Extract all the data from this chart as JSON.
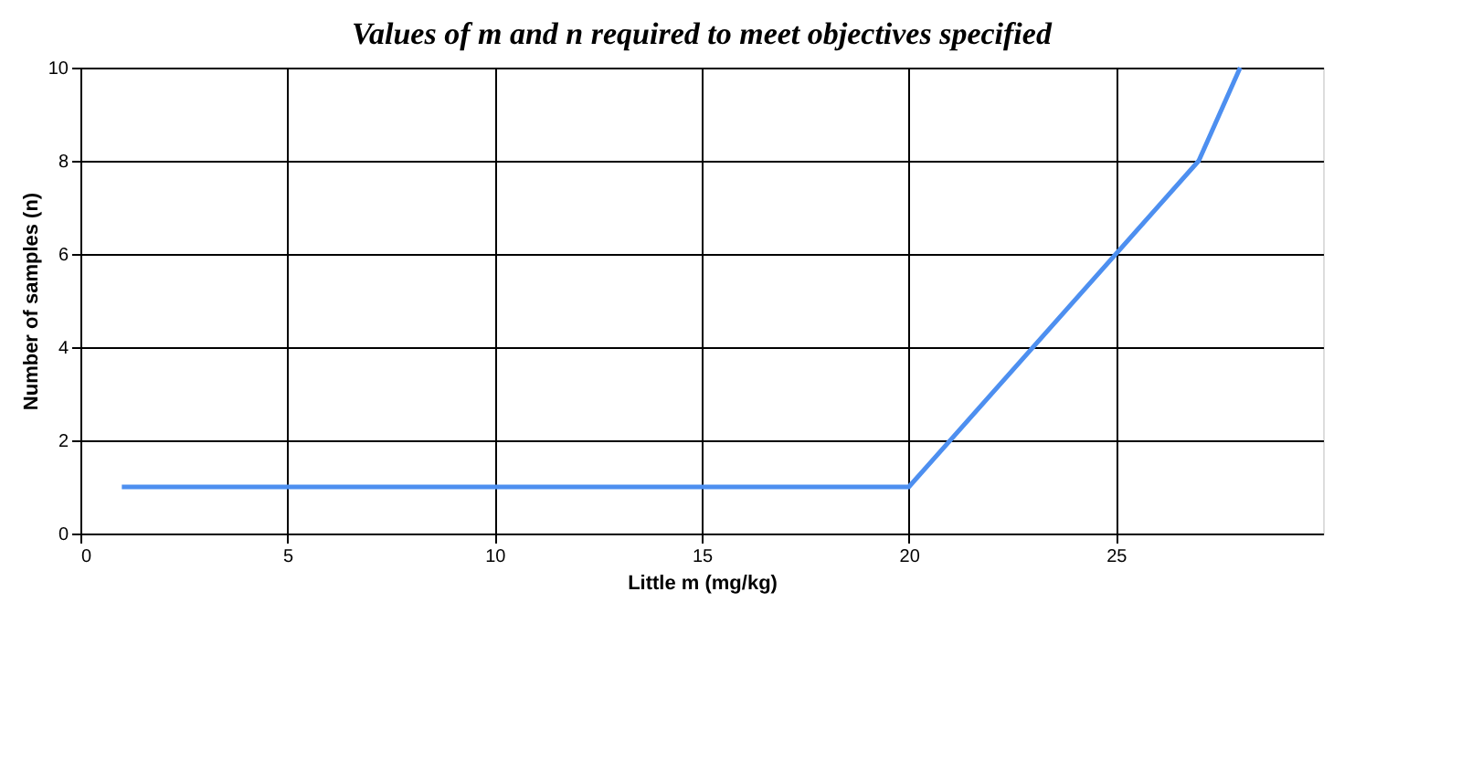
{
  "chart_data": {
    "type": "line",
    "title": "Values of m and n required to meet objectives specified",
    "xlabel": "Little m (mg/kg)",
    "ylabel": "Number of samples (n)",
    "x": [
      1,
      20,
      27,
      28
    ],
    "series": [
      {
        "color": "#4d8ff0",
        "values": [
          1,
          1,
          8,
          10
        ]
      }
    ],
    "xlim": [
      0,
      30
    ],
    "xticks": [
      0,
      5,
      10,
      15,
      20,
      25
    ],
    "ylim": [
      0,
      10
    ],
    "yticks": [
      0,
      2,
      4,
      6,
      8,
      10
    ],
    "grid": true,
    "legend": false,
    "marker": "none",
    "line_style": "solid"
  }
}
